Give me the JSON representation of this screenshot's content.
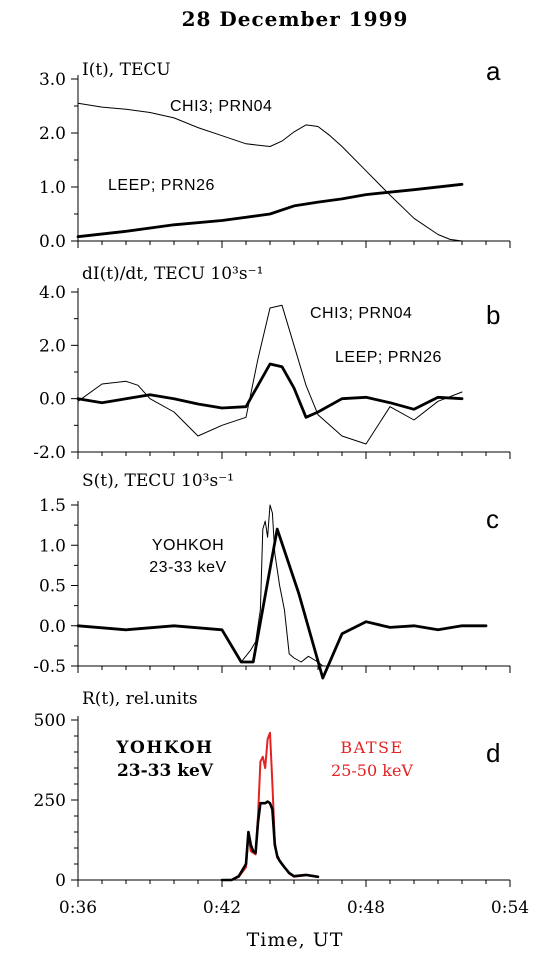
{
  "title": "28 December 1999",
  "xlabel": "Time, UT",
  "x_ticks": [
    "0:36",
    "0:42",
    "0:48",
    "0:54"
  ],
  "colors": {
    "axis": "#000000",
    "batse": "#e32222"
  },
  "chart_data": [
    {
      "type": "line",
      "panel": "a",
      "ylabel": "I(t), TECU",
      "xlim": [
        36,
        54
      ],
      "ylim": [
        0,
        3
      ],
      "yticks": [
        "0.0",
        "1.0",
        "2.0",
        "3.0"
      ],
      "series": [
        {
          "name": "CHI3; PRN04",
          "x": [
            36,
            37,
            38,
            39,
            40,
            41,
            42,
            43,
            44,
            44.5,
            45,
            45.5,
            46,
            46.5,
            47,
            48,
            49,
            50,
            51,
            51.5,
            52
          ],
          "y": [
            2.55,
            2.48,
            2.44,
            2.38,
            2.28,
            2.1,
            1.95,
            1.8,
            1.75,
            1.85,
            2.02,
            2.15,
            2.12,
            1.95,
            1.75,
            1.3,
            0.85,
            0.42,
            0.12,
            0.03,
            0.0
          ]
        },
        {
          "name": "LEEP; PRN26",
          "x": [
            36,
            38,
            40,
            42,
            44,
            45,
            46,
            47,
            48,
            50,
            52
          ],
          "y": [
            0.08,
            0.18,
            0.3,
            0.38,
            0.5,
            0.65,
            0.72,
            0.78,
            0.86,
            0.95,
            1.05
          ]
        }
      ]
    },
    {
      "type": "line",
      "panel": "b",
      "ylabel": "dI(t)/dt, TECU 10³s⁻¹",
      "xlim": [
        36,
        54
      ],
      "ylim": [
        -2,
        4
      ],
      "yticks": [
        "-2.0",
        "0.0",
        "2.0",
        "4.0"
      ],
      "series": [
        {
          "name": "CHI3; PRN04",
          "x": [
            36,
            37,
            38,
            38.5,
            39,
            40,
            41,
            42,
            43,
            43.5,
            44,
            44.5,
            45,
            45.5,
            46,
            47,
            48,
            49,
            50,
            51,
            52
          ],
          "y": [
            -0.1,
            0.55,
            0.65,
            0.5,
            0.0,
            -0.5,
            -1.4,
            -1.0,
            -0.7,
            1.5,
            3.4,
            3.5,
            2.0,
            0.5,
            -0.6,
            -1.4,
            -1.7,
            -0.3,
            -0.8,
            -0.1,
            0.25
          ]
        },
        {
          "name": "LEEP; PRN26",
          "x": [
            36,
            37,
            38,
            39,
            40,
            41,
            42,
            43,
            43.5,
            44,
            44.5,
            45,
            45.5,
            46,
            47,
            48,
            49,
            50,
            51,
            52
          ],
          "y": [
            0.0,
            -0.15,
            0.0,
            0.15,
            0.0,
            -0.2,
            -0.35,
            -0.3,
            0.5,
            1.3,
            1.2,
            0.4,
            -0.7,
            -0.5,
            0.0,
            0.05,
            -0.15,
            -0.4,
            0.05,
            0.0
          ]
        }
      ]
    },
    {
      "type": "line",
      "panel": "c",
      "ylabel": "S(t), TECU 10³s⁻¹",
      "xlim": [
        36,
        54
      ],
      "ylim": [
        -0.5,
        1.5
      ],
      "yticks": [
        "-0.5",
        "0.0",
        "0.5",
        "1.0",
        "1.5"
      ],
      "annotation": [
        "YOHKOH",
        "23-33 keV"
      ],
      "series": [
        {
          "name": "S(t)",
          "x": [
            36,
            38,
            40,
            42,
            42.8,
            43.3,
            44.3,
            45.2,
            46.2,
            47,
            48,
            49,
            50,
            51,
            52,
            53
          ],
          "y": [
            0.0,
            -0.05,
            0.0,
            -0.05,
            -0.45,
            -0.45,
            1.2,
            0.4,
            -0.65,
            -0.1,
            0.05,
            -0.02,
            0.0,
            -0.05,
            0.0,
            0.0
          ]
        },
        {
          "name": "YOHKOH 23-33 keV",
          "x": [
            42.8,
            43.2,
            43.4,
            43.6,
            43.7,
            43.8,
            43.9,
            44.0,
            44.1,
            44.2,
            44.4,
            44.6,
            44.8,
            45.0,
            45.3,
            45.6,
            46.0,
            46.2
          ],
          "y": [
            -0.45,
            -0.3,
            -0.2,
            0.2,
            1.2,
            1.3,
            1.1,
            1.5,
            1.4,
            0.9,
            0.5,
            0.2,
            -0.35,
            -0.4,
            -0.45,
            -0.38,
            -0.45,
            -0.5
          ]
        }
      ]
    },
    {
      "type": "line",
      "panel": "d",
      "ylabel": "R(t), rel.units",
      "xlim": [
        36,
        54
      ],
      "ylim": [
        0,
        500
      ],
      "yticks": [
        "0",
        "250",
        "500"
      ],
      "x_ticks": [
        "0:36",
        "0:42",
        "0:48",
        "0:54"
      ],
      "series": [
        {
          "name": "YOHKOH 23-33 keV",
          "x": [
            42,
            42.4,
            42.7,
            43.0,
            43.1,
            43.2,
            43.3,
            43.4,
            43.5,
            43.6,
            43.7,
            43.8,
            43.9,
            44.0,
            44.1,
            44.2,
            44.3,
            44.4,
            44.6,
            44.8,
            45.0,
            45.5,
            46.0
          ],
          "y": [
            0,
            0,
            10,
            40,
            140,
            90,
            85,
            80,
            200,
            370,
            385,
            350,
            440,
            460,
            300,
            120,
            70,
            60,
            40,
            20,
            10,
            15,
            10
          ]
        },
        {
          "name": "BATSE 25-50 keV",
          "x": [
            42,
            42.4,
            42.7,
            43.0,
            43.1,
            43.2,
            43.3,
            43.4,
            43.5,
            43.6,
            43.7,
            43.8,
            43.9,
            44.0,
            44.1,
            44.2,
            44.3,
            44.4,
            44.6,
            44.8,
            45.0,
            45.5,
            46.0
          ],
          "y": [
            0,
            0,
            12,
            50,
            150,
            110,
            90,
            85,
            180,
            240,
            240,
            240,
            245,
            240,
            220,
            110,
            75,
            60,
            40,
            22,
            12,
            16,
            10
          ]
        }
      ]
    }
  ],
  "panel_texts": {
    "a": {
      "letter": "a",
      "label1": "CHI3; PRN04",
      "label2": "LEEP; PRN26"
    },
    "b": {
      "letter": "b",
      "label1": "CHI3; PRN04",
      "label2": "LEEP; PRN26"
    },
    "c": {
      "letter": "c",
      "label1": "YOHKOH",
      "label2": "23-33 keV"
    },
    "d": {
      "letter": "d",
      "label1": "YOHKOH",
      "label2": "23-33 keV",
      "label3": "BATSE",
      "label4": "25-50 keV"
    }
  }
}
